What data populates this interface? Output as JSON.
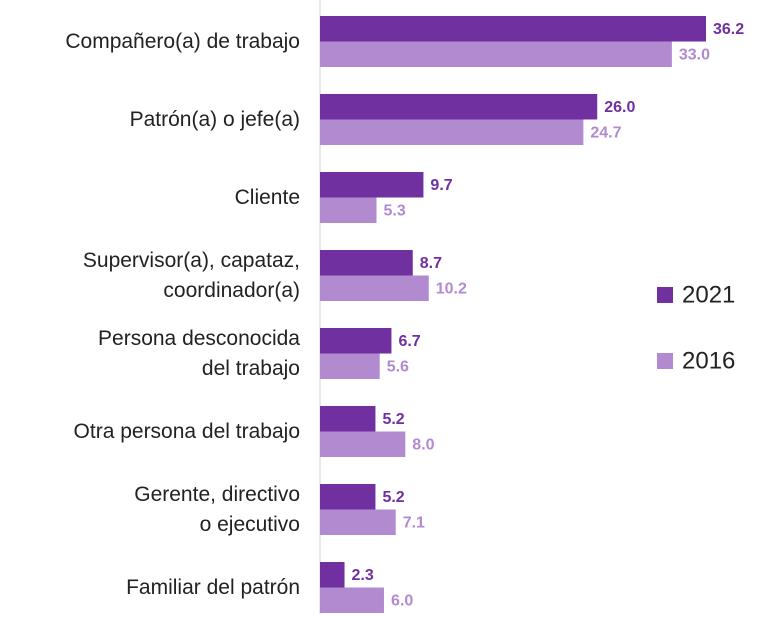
{
  "chart_data": {
    "type": "bar",
    "orientation": "horizontal",
    "categories": [
      "Compañero(a) de trabajo",
      "Patrón(a) o jefe(a)",
      "Cliente",
      "Supervisor(a), capataz,\ncoordinador(a)",
      "Persona desconocida\ndel trabajo",
      "Otra persona del trabajo",
      "Gerente, directivo\no ejecutivo",
      "Familiar del patrón"
    ],
    "series": [
      {
        "name": "2021",
        "color": "#7030a0",
        "values": [
          36.2,
          26.0,
          9.7,
          8.7,
          6.7,
          5.2,
          5.2,
          2.3
        ],
        "value_labels": [
          "36.2",
          "26.0",
          "9.7",
          "8.7",
          "6.7",
          "5.2",
          "5.2",
          "2.3"
        ]
      },
      {
        "name": "2016",
        "color": "#b28ad0",
        "values": [
          33.0,
          24.7,
          5.3,
          10.2,
          5.6,
          8.0,
          7.1,
          6.0
        ],
        "value_labels": [
          "33.0",
          "24.7",
          "5.3",
          "10.2",
          "5.6",
          "8.0",
          "7.1",
          "6.0"
        ]
      }
    ],
    "legend": "right"
  }
}
